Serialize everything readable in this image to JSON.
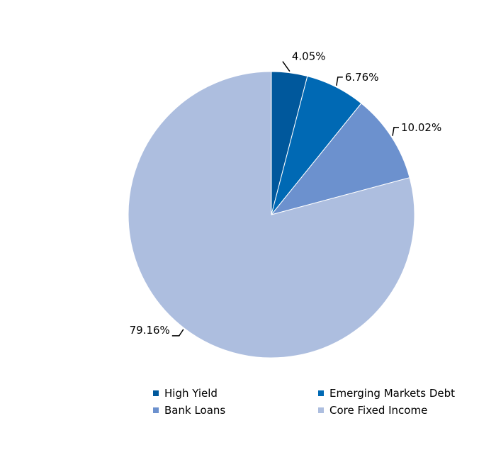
{
  "chart_data": {
    "type": "pie",
    "title": "",
    "start_angle_deg": 0,
    "direction": "clockwise",
    "legend_position": "bottom",
    "series": [
      {
        "name": "High Yield",
        "value": 4.05,
        "label": "4.05%",
        "color": "#00589c"
      },
      {
        "name": "Emerging Markets Debt",
        "value": 6.76,
        "label": "6.76%",
        "color": "#0069b4"
      },
      {
        "name": "Bank Loans",
        "value": 10.02,
        "label": "10.02%",
        "color": "#6c91ce"
      },
      {
        "name": "Core Fixed Income",
        "value": 79.16,
        "label": "79.16%",
        "color": "#adbedf"
      }
    ]
  }
}
